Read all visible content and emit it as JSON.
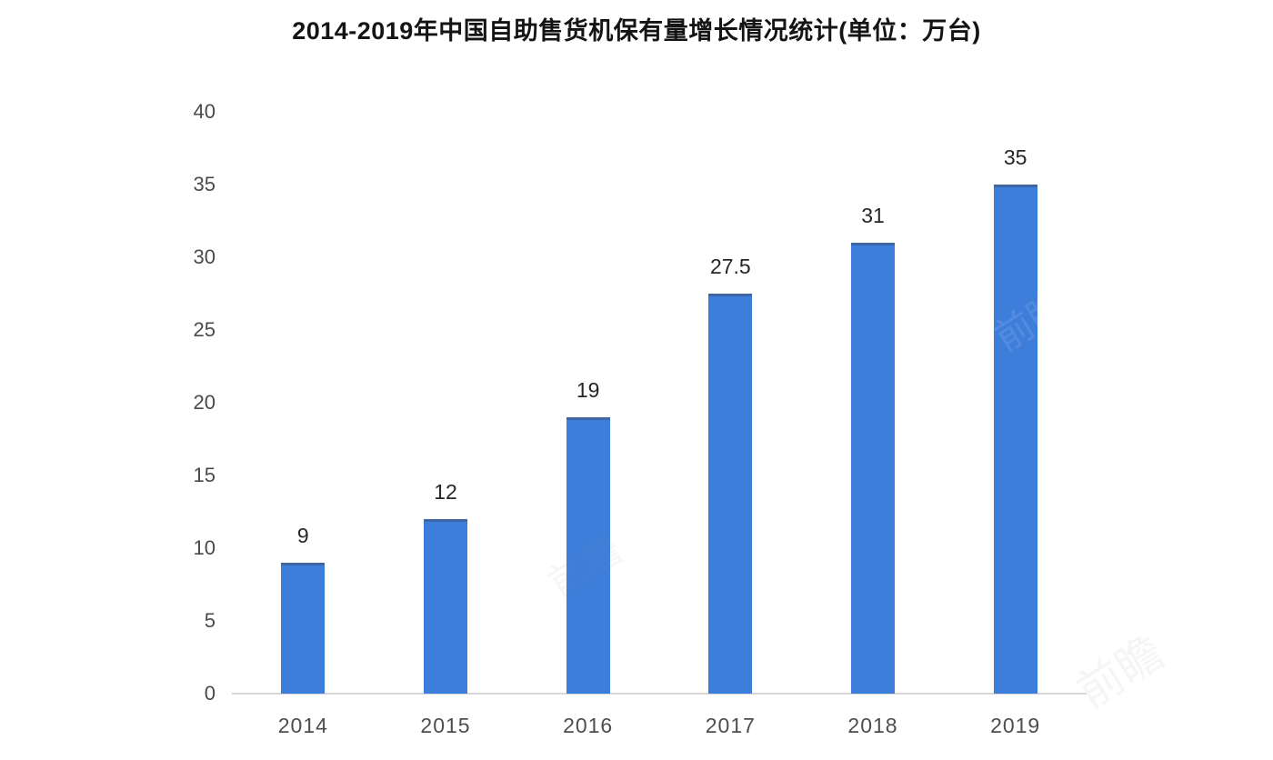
{
  "title": "2014-2019年中国自助售货机保有量增长情况统计(单位：万台)",
  "colors": {
    "bar": "#3E7EDB",
    "bar_top_edge": "rgba(62,76,99,0.45)",
    "baseline": "#d9d9d9",
    "tick_text": "#4a4a4a",
    "value_text": "#262626",
    "title_text": "#141414"
  },
  "chart_data": {
    "type": "bar",
    "title": "2014-2019年中国自助售货机保有量增长情况统计(单位：万台)",
    "categories": [
      "2014",
      "2015",
      "2016",
      "2017",
      "2018",
      "2019"
    ],
    "values": [
      9,
      12,
      19,
      27.5,
      31,
      35
    ],
    "value_labels": [
      "9",
      "12",
      "19",
      "27.5",
      "31",
      "35"
    ],
    "xlabel": "",
    "ylabel": "",
    "ylim": [
      0,
      40
    ],
    "yticks": [
      0,
      5,
      10,
      15,
      20,
      25,
      30,
      35,
      40
    ],
    "grid": false,
    "legend_position": "none",
    "unit": "万台"
  },
  "watermark": {
    "text": "前瞻"
  }
}
